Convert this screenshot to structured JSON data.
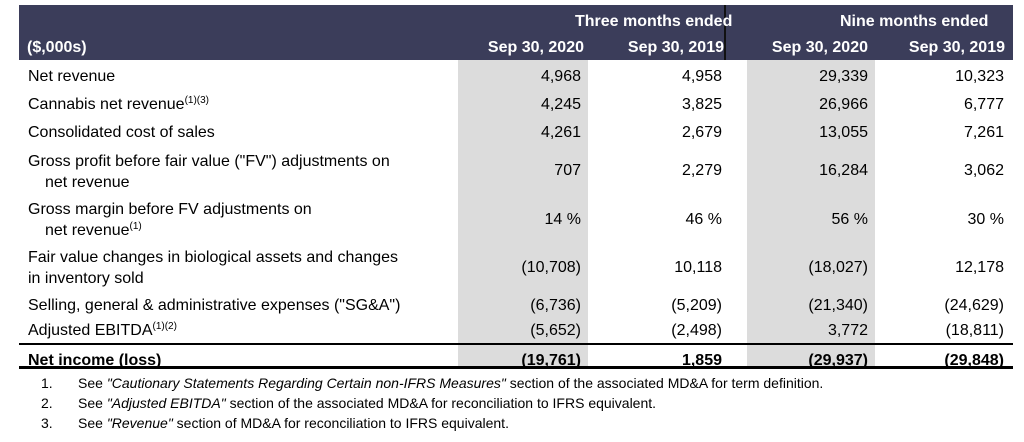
{
  "table": {
    "unit_label": "($,000s)",
    "group_headers": [
      "Three months ended",
      "Nine months ended"
    ],
    "columns": [
      "Sep 30, 2020",
      "Sep 30, 2019",
      "Sep 30, 2020",
      "Sep 30, 2019"
    ],
    "rows": [
      {
        "label": "Net revenue",
        "sup": "",
        "values": [
          "4,968",
          "4,958",
          "29,339",
          "10,323"
        ]
      },
      {
        "label": "Cannabis net revenue",
        "sup": "(1)(3)",
        "values": [
          "4,245",
          "3,825",
          "26,966",
          "6,777"
        ]
      },
      {
        "label": "Consolidated cost of sales",
        "sup": "",
        "values": [
          "4,261",
          "2,679",
          "13,055",
          "7,261"
        ]
      },
      {
        "label": "Gross profit before fair value (\"FV\") adjustments on",
        "label2": "net revenue",
        "sup": "",
        "values": [
          "707",
          "2,279",
          "16,284",
          "3,062"
        ]
      },
      {
        "label": "Gross margin before FV adjustments on",
        "label2": "net revenue",
        "sup": "(1)",
        "values": [
          "14 %",
          "46 %",
          "56 %",
          "30 %"
        ]
      },
      {
        "label": "Fair value changes in biological assets and changes",
        "label2": "in inventory sold",
        "sup": "",
        "values": [
          "(10,708)",
          "10,118",
          "(18,027)",
          "12,178"
        ]
      },
      {
        "label": "Selling, general & administrative expenses (\"SG&A\")",
        "sup": "",
        "values": [
          "(6,736)",
          "(5,209)",
          "(21,340)",
          "(24,629)"
        ]
      },
      {
        "label": "Adjusted EBITDA",
        "sup": "(1)(2)",
        "values": [
          "(5,652)",
          "(2,498)",
          "3,772",
          "(18,811)"
        ]
      },
      {
        "label": "Net income (loss)",
        "sup": "",
        "values": [
          "(19,761)",
          "1,859",
          "(29,937)",
          "(29,848)"
        ]
      }
    ]
  },
  "footnotes": [
    {
      "num": "1.",
      "pre": "See ",
      "italic": "\"Cautionary Statements Regarding Certain non-IFRS Measures\"",
      "post": " section of the associated MD&A for term definition."
    },
    {
      "num": "2.",
      "pre": "See ",
      "italic": "\"Adjusted EBITDA\"",
      "post": " section of the associated MD&A for reconciliation to IFRS equivalent."
    },
    {
      "num": "3.",
      "pre": "See ",
      "italic": "\"Revenue\"",
      "post": " section of MD&A for reconciliation to IFRS equivalent."
    }
  ]
}
